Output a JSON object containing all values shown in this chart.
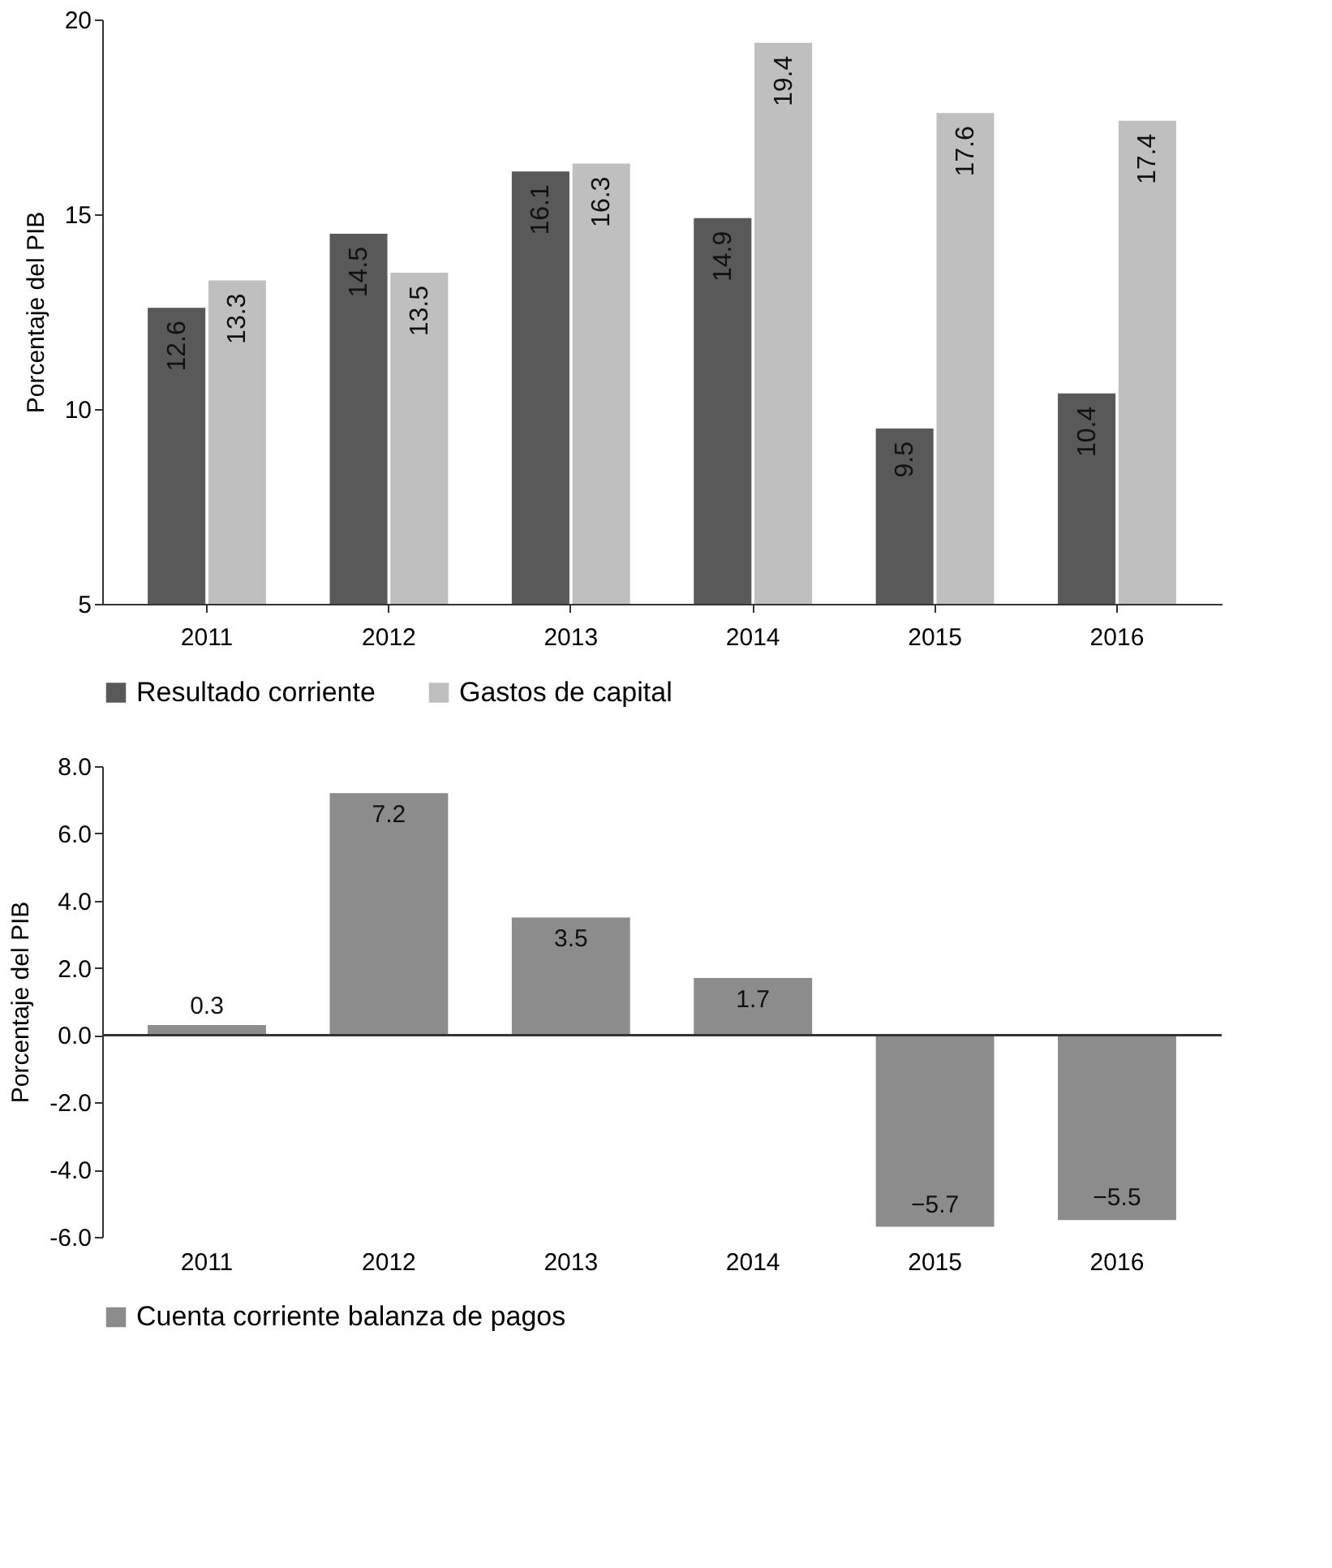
{
  "chart_data": [
    {
      "type": "bar",
      "ylabel": "Porcentaje del PIB",
      "categories": [
        "2011",
        "2012",
        "2013",
        "2014",
        "2015",
        "2016"
      ],
      "series": [
        {
          "name": "Resultado corriente",
          "color": "#595959",
          "values": [
            12.6,
            14.5,
            16.1,
            14.9,
            9.5,
            10.4
          ]
        },
        {
          "name": "Gastos de capital",
          "color": "#bfbfbf",
          "values": [
            13.3,
            13.5,
            16.3,
            19.4,
            17.6,
            17.4
          ]
        }
      ],
      "ylim": [
        5,
        20
      ],
      "yticks": [
        5,
        10,
        15,
        20
      ],
      "data_labels": true,
      "legend": "bottom",
      "grid": false
    },
    {
      "type": "bar",
      "ylabel": "Porcentaje del PIB",
      "categories": [
        "2011",
        "2012",
        "2013",
        "2014",
        "2015",
        "2016"
      ],
      "series": [
        {
          "name": "Cuenta corriente balanza de pagos",
          "color": "#8c8c8c",
          "values": [
            0.3,
            7.2,
            3.5,
            1.7,
            -5.7,
            -5.5
          ]
        }
      ],
      "ylim": [
        -6,
        8
      ],
      "yticks": [
        {
          "value": -6,
          "label": "-6.0"
        },
        {
          "value": -4,
          "label": "-4.0"
        },
        {
          "value": -2,
          "label": "-2.0"
        },
        {
          "value": 0,
          "label": "0.0"
        },
        {
          "value": 2,
          "label": "2.0"
        },
        {
          "value": 4,
          "label": "4.0"
        },
        {
          "value": 6,
          "label": "6.0"
        },
        {
          "value": 8,
          "label": "8.0"
        }
      ],
      "data_labels": true,
      "legend": "bottom",
      "grid": false,
      "ref_lines": [
        {
          "axis": "y",
          "value": 0,
          "color": "#333333"
        }
      ]
    }
  ]
}
